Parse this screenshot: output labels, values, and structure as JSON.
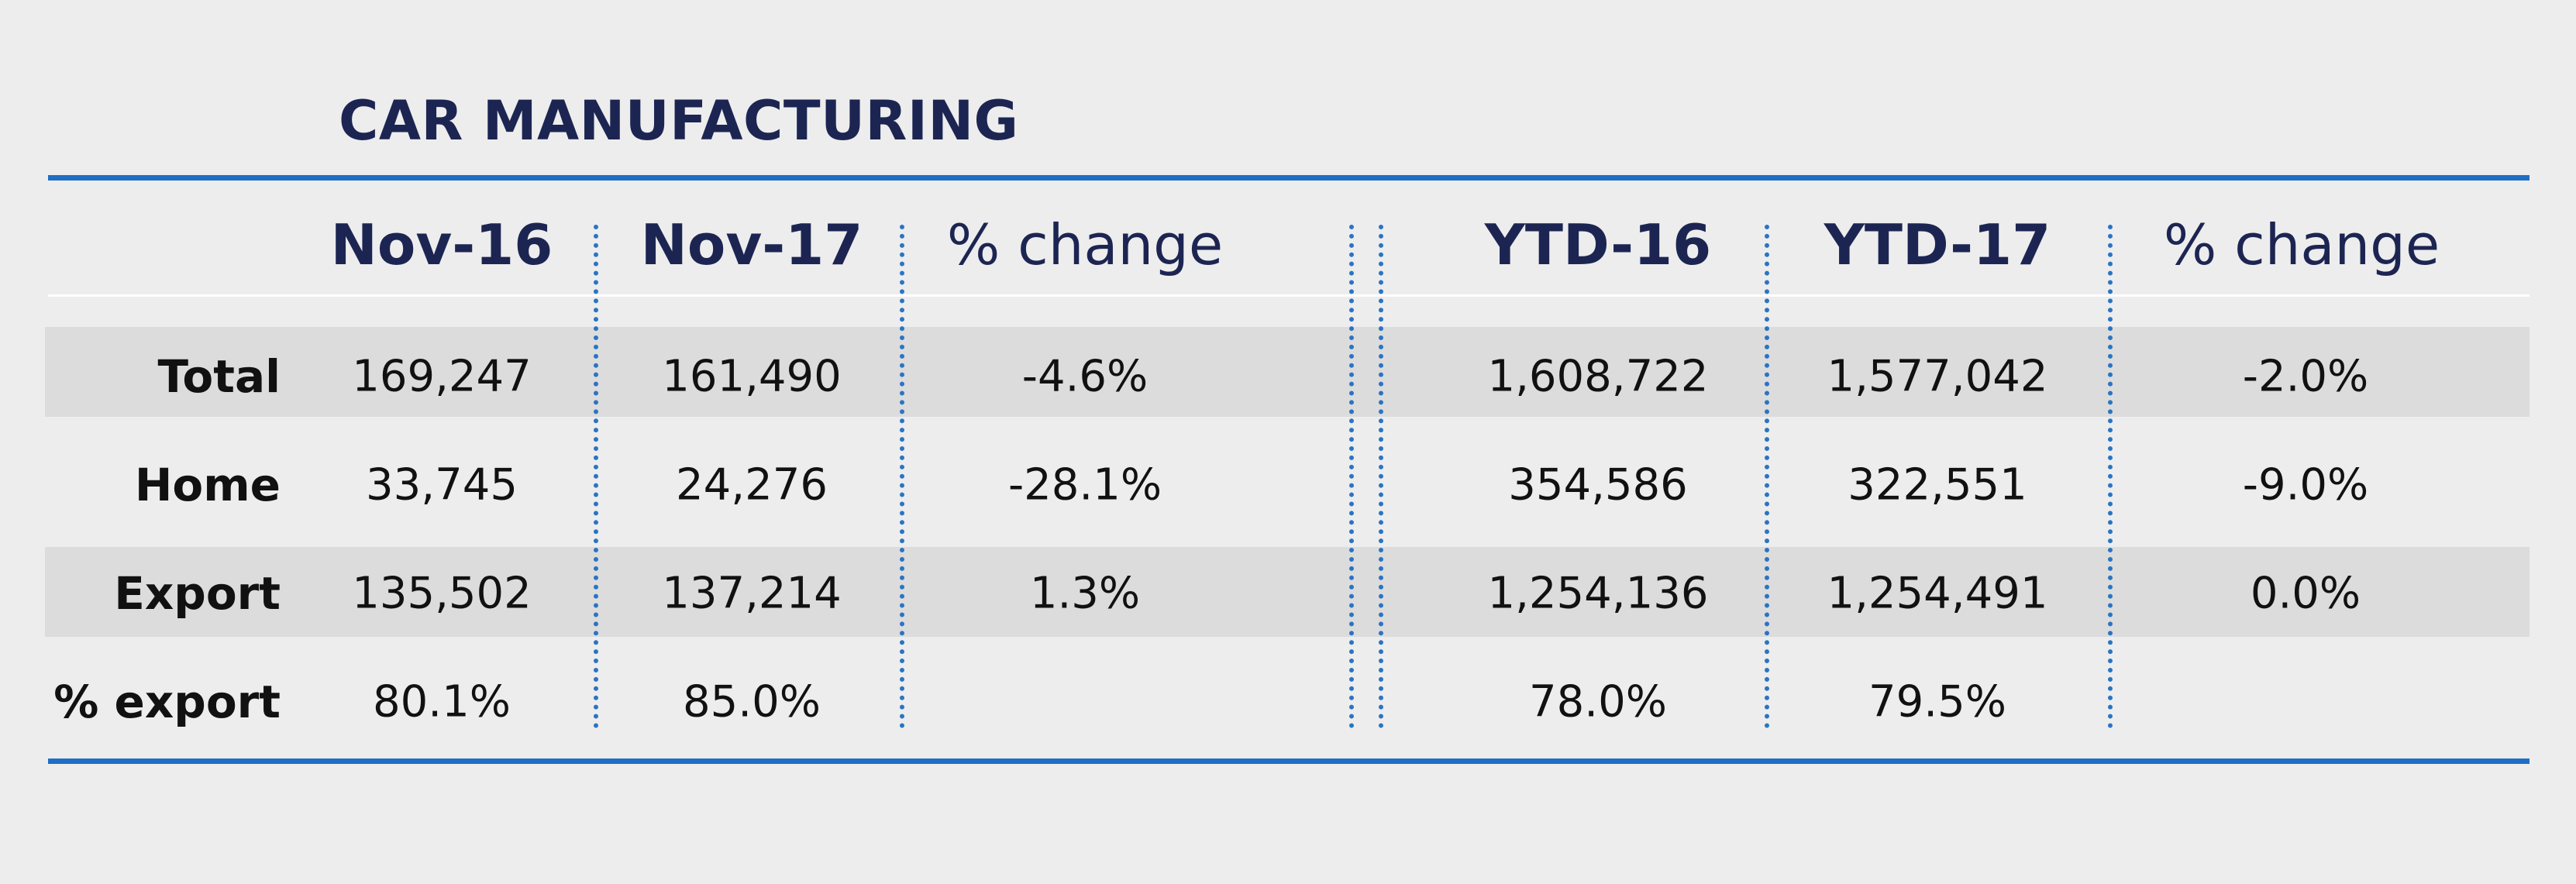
{
  "chart_data": {
    "type": "table",
    "title": "CAR MANUFACTURING",
    "columns": [
      "Nov-16",
      "Nov-17",
      "% change",
      "YTD-16",
      "YTD-17",
      "% change"
    ],
    "rows": [
      {
        "label": "Total",
        "values": [
          "169,247",
          "161,490",
          "-4.6%",
          "1,608,722",
          "1,577,042",
          "-2.0%"
        ]
      },
      {
        "label": "Home",
        "values": [
          "33,745",
          "24,276",
          "-28.1%",
          "354,586",
          "322,551",
          "-9.0%"
        ]
      },
      {
        "label": "Export",
        "values": [
          "135,502",
          "137,214",
          "1.3%",
          "1,254,136",
          "1,254,491",
          "0.0%"
        ]
      },
      {
        "label": "% export",
        "values": [
          "80.1%",
          "85.0%",
          "",
          "78.0%",
          "79.5%",
          ""
        ]
      }
    ]
  },
  "colors": {
    "title": "#1c2552",
    "accent_rule": "#1f6fc4",
    "row_band": "#dcdcdc",
    "background": "#ededed"
  }
}
